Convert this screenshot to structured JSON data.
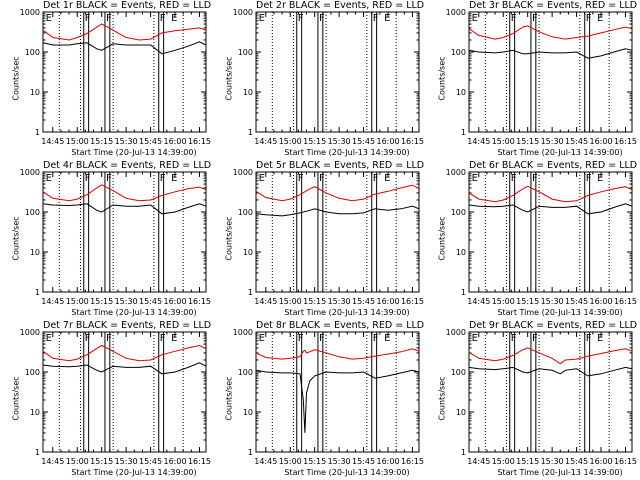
{
  "page": {
    "title": ""
  },
  "common": {
    "xlabel": "Start Time (20-Jul-13 14:39:00)",
    "ylabel": "Counts/sec",
    "x_ticks": [
      "14:45",
      "15:00",
      "15:15",
      "15:30",
      "15:45",
      "16:00",
      "16:15"
    ],
    "y_ticks": [
      "1",
      "10",
      "100",
      "1000"
    ],
    "colors": {
      "events": "#000000",
      "lld": "#e00000"
    }
  },
  "chart_data": [
    {
      "type": "line",
      "title": "Det 1r  BLACK = Events, RED = LLD",
      "xlabel": "Start Time (20-Jul-13 14:39:00)",
      "ylabel": "Counts/sec",
      "yscale": "log",
      "ylim": [
        1,
        1000
      ],
      "x": [
        "14:39",
        "14:45",
        "14:55",
        "15:00",
        "15:06",
        "15:12",
        "15:15",
        "15:22",
        "15:30",
        "15:38",
        "15:45",
        "15:52",
        "16:00",
        "16:08",
        "16:15",
        "16:19"
      ],
      "series": [
        {
          "name": "BLACK = Events",
          "values": [
            170,
            150,
            150,
            160,
            170,
            120,
            110,
            160,
            150,
            150,
            150,
            90,
            110,
            140,
            180,
            150
          ]
        },
        {
          "name": "RED = LLD",
          "values": [
            350,
            230,
            200,
            230,
            290,
            420,
            500,
            350,
            230,
            200,
            210,
            300,
            340,
            370,
            400,
            350
          ]
        }
      ],
      "gaps": [
        [
          "15:04",
          "15:07"
        ],
        [
          "15:17",
          "15:20"
        ],
        [
          "15:50",
          "15:53"
        ]
      ],
      "dotted_lines": [
        "14:49",
        "15:02",
        "15:22",
        "15:47",
        "16:05"
      ],
      "markers": [
        "E",
        "F",
        "F",
        "F",
        "E"
      ]
    },
    {
      "type": "line",
      "title": "Det 2r  BLACK = Events, RED = LLD",
      "xlabel": "Start Time (20-Jul-13 14:39:00)",
      "ylabel": "Counts/sec",
      "yscale": "log",
      "ylim": [
        1,
        1000
      ],
      "x": [],
      "series": [],
      "gaps": [
        [
          "15:04",
          "15:07"
        ],
        [
          "15:17",
          "15:20"
        ],
        [
          "15:50",
          "15:53"
        ]
      ],
      "dotted_lines": [
        "14:49",
        "15:02",
        "15:22",
        "15:47",
        "16:05"
      ],
      "markers": [
        "E",
        "F",
        "F",
        "F",
        "E"
      ]
    },
    {
      "type": "line",
      "title": "Det 3r  BLACK = Events, RED = LLD",
      "xlabel": "Start Time (20-Jul-13 14:39:00)",
      "ylabel": "Counts/sec",
      "yscale": "log",
      "ylim": [
        1,
        1000
      ],
      "x": [
        "14:39",
        "14:45",
        "14:55",
        "15:00",
        "15:06",
        "15:12",
        "15:15",
        "15:22",
        "15:30",
        "15:38",
        "15:45",
        "15:52",
        "16:00",
        "16:08",
        "16:15",
        "16:19"
      ],
      "series": [
        {
          "name": "BLACK = Events",
          "values": [
            110,
            100,
            95,
            100,
            110,
            90,
            90,
            100,
            95,
            95,
            100,
            70,
            80,
            100,
            120,
            110
          ]
        },
        {
          "name": "RED = LLD",
          "values": [
            380,
            260,
            210,
            230,
            290,
            420,
            450,
            320,
            240,
            210,
            230,
            250,
            300,
            360,
            420,
            380
          ]
        }
      ],
      "gaps": [
        [
          "15:04",
          "15:07"
        ],
        [
          "15:17",
          "15:20"
        ],
        [
          "15:50",
          "15:53"
        ]
      ],
      "dotted_lines": [
        "14:49",
        "15:02",
        "15:22",
        "15:47",
        "16:05"
      ],
      "markers": [
        "E",
        "F",
        "F",
        "F",
        "E"
      ]
    },
    {
      "type": "line",
      "title": "Det 4r  BLACK = Events, RED = LLD",
      "xlabel": "Start Time (20-Jul-13 14:39:00)",
      "ylabel": "Counts/sec",
      "yscale": "log",
      "ylim": [
        1,
        1000
      ],
      "x": [
        "14:39",
        "14:45",
        "14:55",
        "15:00",
        "15:06",
        "15:12",
        "15:15",
        "15:22",
        "15:30",
        "15:38",
        "15:45",
        "15:52",
        "16:00",
        "16:08",
        "16:15",
        "16:19"
      ],
      "series": [
        {
          "name": "BLACK = Events",
          "values": [
            160,
            150,
            145,
            150,
            160,
            110,
            100,
            150,
            140,
            140,
            150,
            90,
            100,
            130,
            160,
            140
          ]
        },
        {
          "name": "RED = LLD",
          "values": [
            320,
            220,
            190,
            210,
            270,
            400,
            480,
            340,
            220,
            190,
            200,
            260,
            320,
            380,
            420,
            360
          ]
        }
      ],
      "gaps": [
        [
          "15:04",
          "15:07"
        ],
        [
          "15:17",
          "15:20"
        ],
        [
          "15:50",
          "15:53"
        ]
      ],
      "dotted_lines": [
        "14:49",
        "15:02",
        "15:22",
        "15:47",
        "16:05"
      ],
      "markers": [
        "E",
        "F",
        "F",
        "F",
        "E"
      ]
    },
    {
      "type": "line",
      "title": "Det 5r  BLACK = Events, RED = LLD",
      "xlabel": "Start Time (20-Jul-13 14:39:00)",
      "ylabel": "Counts/sec",
      "yscale": "log",
      "ylim": [
        1,
        1000
      ],
      "x": [
        "14:39",
        "14:45",
        "14:55",
        "15:00",
        "15:06",
        "15:12",
        "15:15",
        "15:22",
        "15:30",
        "15:38",
        "15:45",
        "15:52",
        "16:00",
        "16:08",
        "16:15",
        "16:19"
      ],
      "series": [
        {
          "name": "BLACK = Events",
          "values": [
            90,
            85,
            80,
            85,
            95,
            110,
            120,
            100,
            90,
            90,
            95,
            120,
            110,
            120,
            140,
            120
          ]
        },
        {
          "name": "RED = LLD",
          "values": [
            330,
            230,
            190,
            210,
            270,
            380,
            430,
            300,
            220,
            190,
            210,
            280,
            330,
            400,
            470,
            380
          ]
        }
      ],
      "gaps": [
        [
          "15:04",
          "15:07"
        ],
        [
          "15:17",
          "15:20"
        ],
        [
          "15:50",
          "15:53"
        ]
      ],
      "dotted_lines": [
        "14:49",
        "15:02",
        "15:22",
        "15:47",
        "16:05"
      ],
      "markers": [
        "E",
        "F",
        "F",
        "F",
        "E"
      ]
    },
    {
      "type": "line",
      "title": "Det 6r  BLACK = Events, RED = LLD",
      "xlabel": "Start Time (20-Jul-13 14:39:00)",
      "ylabel": "Counts/sec",
      "yscale": "log",
      "ylim": [
        1,
        1000
      ],
      "x": [
        "14:39",
        "14:45",
        "14:55",
        "15:00",
        "15:06",
        "15:12",
        "15:15",
        "15:22",
        "15:30",
        "15:38",
        "15:45",
        "15:52",
        "16:00",
        "16:08",
        "16:15",
        "16:19"
      ],
      "series": [
        {
          "name": "BLACK = Events",
          "values": [
            150,
            140,
            135,
            140,
            150,
            110,
            100,
            140,
            130,
            130,
            140,
            90,
            100,
            130,
            160,
            140
          ]
        },
        {
          "name": "RED = LLD",
          "values": [
            300,
            210,
            180,
            200,
            260,
            380,
            440,
            320,
            210,
            180,
            190,
            260,
            320,
            380,
            430,
            360
          ]
        }
      ],
      "gaps": [
        [
          "15:04",
          "15:07"
        ],
        [
          "15:17",
          "15:20"
        ],
        [
          "15:50",
          "15:53"
        ]
      ],
      "dotted_lines": [
        "14:49",
        "15:02",
        "15:22",
        "15:47",
        "16:05"
      ],
      "markers": [
        "E",
        "F",
        "F",
        "F",
        "E"
      ]
    },
    {
      "type": "line",
      "title": "Det 7r  BLACK = Events, RED = LLD",
      "xlabel": "Start Time (20-Jul-13 14:39:00)",
      "ylabel": "Counts/sec",
      "yscale": "log",
      "ylim": [
        1,
        1000
      ],
      "x": [
        "14:39",
        "14:45",
        "14:55",
        "15:00",
        "15:06",
        "15:12",
        "15:15",
        "15:22",
        "15:30",
        "15:38",
        "15:45",
        "15:52",
        "16:00",
        "16:08",
        "16:15",
        "16:19"
      ],
      "series": [
        {
          "name": "BLACK = Events",
          "values": [
            150,
            140,
            135,
            140,
            150,
            110,
            100,
            140,
            130,
            130,
            140,
            90,
            100,
            130,
            170,
            140
          ]
        },
        {
          "name": "RED = LLD",
          "values": [
            330,
            220,
            190,
            210,
            270,
            390,
            460,
            330,
            220,
            190,
            200,
            270,
            330,
            400,
            460,
            380
          ]
        }
      ],
      "gaps": [
        [
          "15:04",
          "15:07"
        ],
        [
          "15:17",
          "15:20"
        ],
        [
          "15:50",
          "15:53"
        ]
      ],
      "dotted_lines": [
        "14:49",
        "15:02",
        "15:22",
        "15:47",
        "16:05"
      ],
      "markers": [
        "E",
        "F",
        "F",
        "F",
        "E"
      ]
    },
    {
      "type": "line",
      "title": "Det 8r  BLACK = Events, RED = LLD",
      "xlabel": "Start Time (20-Jul-13 14:39:00)",
      "ylabel": "Counts/sec",
      "yscale": "log",
      "ylim": [
        1,
        1000
      ],
      "x": [
        "14:39",
        "14:45",
        "14:55",
        "15:00",
        "15:06",
        "15:08",
        "15:09",
        "15:10",
        "15:12",
        "15:15",
        "15:22",
        "15:30",
        "15:38",
        "15:45",
        "15:52",
        "16:00",
        "16:08",
        "16:15",
        "16:19"
      ],
      "series": [
        {
          "name": "BLACK = Events",
          "values": [
            110,
            100,
            95,
            95,
            90,
            20,
            3,
            30,
            60,
            80,
            100,
            95,
            95,
            100,
            70,
            80,
            95,
            110,
            100
          ]
        },
        {
          "name": "RED = LLD",
          "values": [
            300,
            230,
            210,
            220,
            240,
            330,
            350,
            300,
            320,
            360,
            300,
            240,
            210,
            220,
            250,
            280,
            320,
            380,
            330
          ]
        }
      ],
      "gaps": [
        [
          "15:04",
          "15:07"
        ],
        [
          "15:17",
          "15:20"
        ],
        [
          "15:50",
          "15:53"
        ]
      ],
      "dotted_lines": [
        "14:49",
        "15:02",
        "15:22",
        "15:47",
        "16:05"
      ],
      "markers": [
        "E",
        "F",
        "F",
        "F",
        "E"
      ]
    },
    {
      "type": "line",
      "title": "Det 9r  BLACK = Events, RED = LLD",
      "xlabel": "Start Time (20-Jul-13 14:39:00)",
      "ylabel": "Counts/sec",
      "yscale": "log",
      "ylim": [
        1,
        1000
      ],
      "x": [
        "14:39",
        "14:45",
        "14:55",
        "15:00",
        "15:06",
        "15:12",
        "15:15",
        "15:22",
        "15:30",
        "15:35",
        "15:38",
        "15:45",
        "15:52",
        "16:00",
        "16:08",
        "16:15",
        "16:19"
      ],
      "series": [
        {
          "name": "BLACK = Events",
          "values": [
            130,
            120,
            115,
            120,
            130,
            100,
            95,
            120,
            110,
            90,
            110,
            120,
            80,
            90,
            110,
            130,
            120
          ]
        },
        {
          "name": "RED = LLD",
          "values": [
            310,
            220,
            190,
            210,
            260,
            360,
            400,
            300,
            220,
            160,
            200,
            210,
            250,
            290,
            340,
            380,
            330
          ]
        }
      ],
      "gaps": [
        [
          "15:04",
          "15:07"
        ],
        [
          "15:17",
          "15:20"
        ],
        [
          "15:50",
          "15:53"
        ]
      ],
      "dotted_lines": [
        "14:49",
        "15:02",
        "15:22",
        "15:47",
        "16:05"
      ],
      "markers": [
        "E",
        "F",
        "F",
        "F",
        "E"
      ]
    }
  ]
}
